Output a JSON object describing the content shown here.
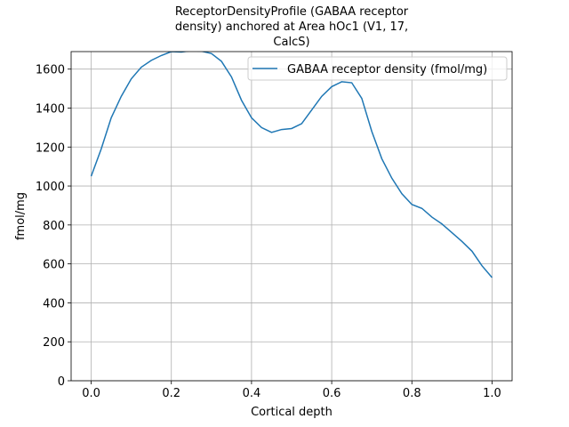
{
  "chart_data": {
    "type": "line",
    "title": [
      "ReceptorDensityProfile (GABAA receptor",
      "density) anchored at Area hOc1 (V1, 17,",
      "CalcS)"
    ],
    "xlabel": "Cortical depth",
    "ylabel": "fmol/mg",
    "x": [
      0,
      0.025,
      0.05,
      0.075,
      0.1,
      0.125,
      0.15,
      0.175,
      0.2,
      0.225,
      0.25,
      0.275,
      0.3,
      0.325,
      0.35,
      0.375,
      0.4,
      0.425,
      0.45,
      0.475,
      0.5,
      0.525,
      0.55,
      0.575,
      0.6,
      0.625,
      0.65,
      0.675,
      0.7,
      0.725,
      0.75,
      0.775,
      0.8,
      0.825,
      0.85,
      0.875,
      0.9,
      0.925,
      0.95,
      0.975,
      1.0
    ],
    "series": [
      {
        "name": "GABAA receptor density (fmol/mg)",
        "color": "#1f77b4",
        "values": [
          1050,
          1190,
          1350,
          1460,
          1550,
          1610,
          1645,
          1670,
          1690,
          1688,
          1695,
          1692,
          1680,
          1640,
          1560,
          1440,
          1350,
          1300,
          1275,
          1290,
          1295,
          1320,
          1390,
          1460,
          1510,
          1535,
          1530,
          1450,
          1280,
          1140,
          1040,
          960,
          905,
          885,
          840,
          805,
          760,
          715,
          665,
          590,
          530
        ]
      }
    ],
    "xlim": [
      -0.05,
      1.05
    ],
    "ylim": [
      0,
      1690
    ],
    "xticks": [
      {
        "value": 0,
        "label": "0.0"
      },
      0.2,
      0.4,
      0.6,
      0.8,
      {
        "value": 1,
        "label": "1.0"
      }
    ],
    "yticks": [
      0,
      200,
      400,
      600,
      800,
      1000,
      1200,
      1400,
      1600
    ],
    "grid": true,
    "legend": "upper right"
  }
}
